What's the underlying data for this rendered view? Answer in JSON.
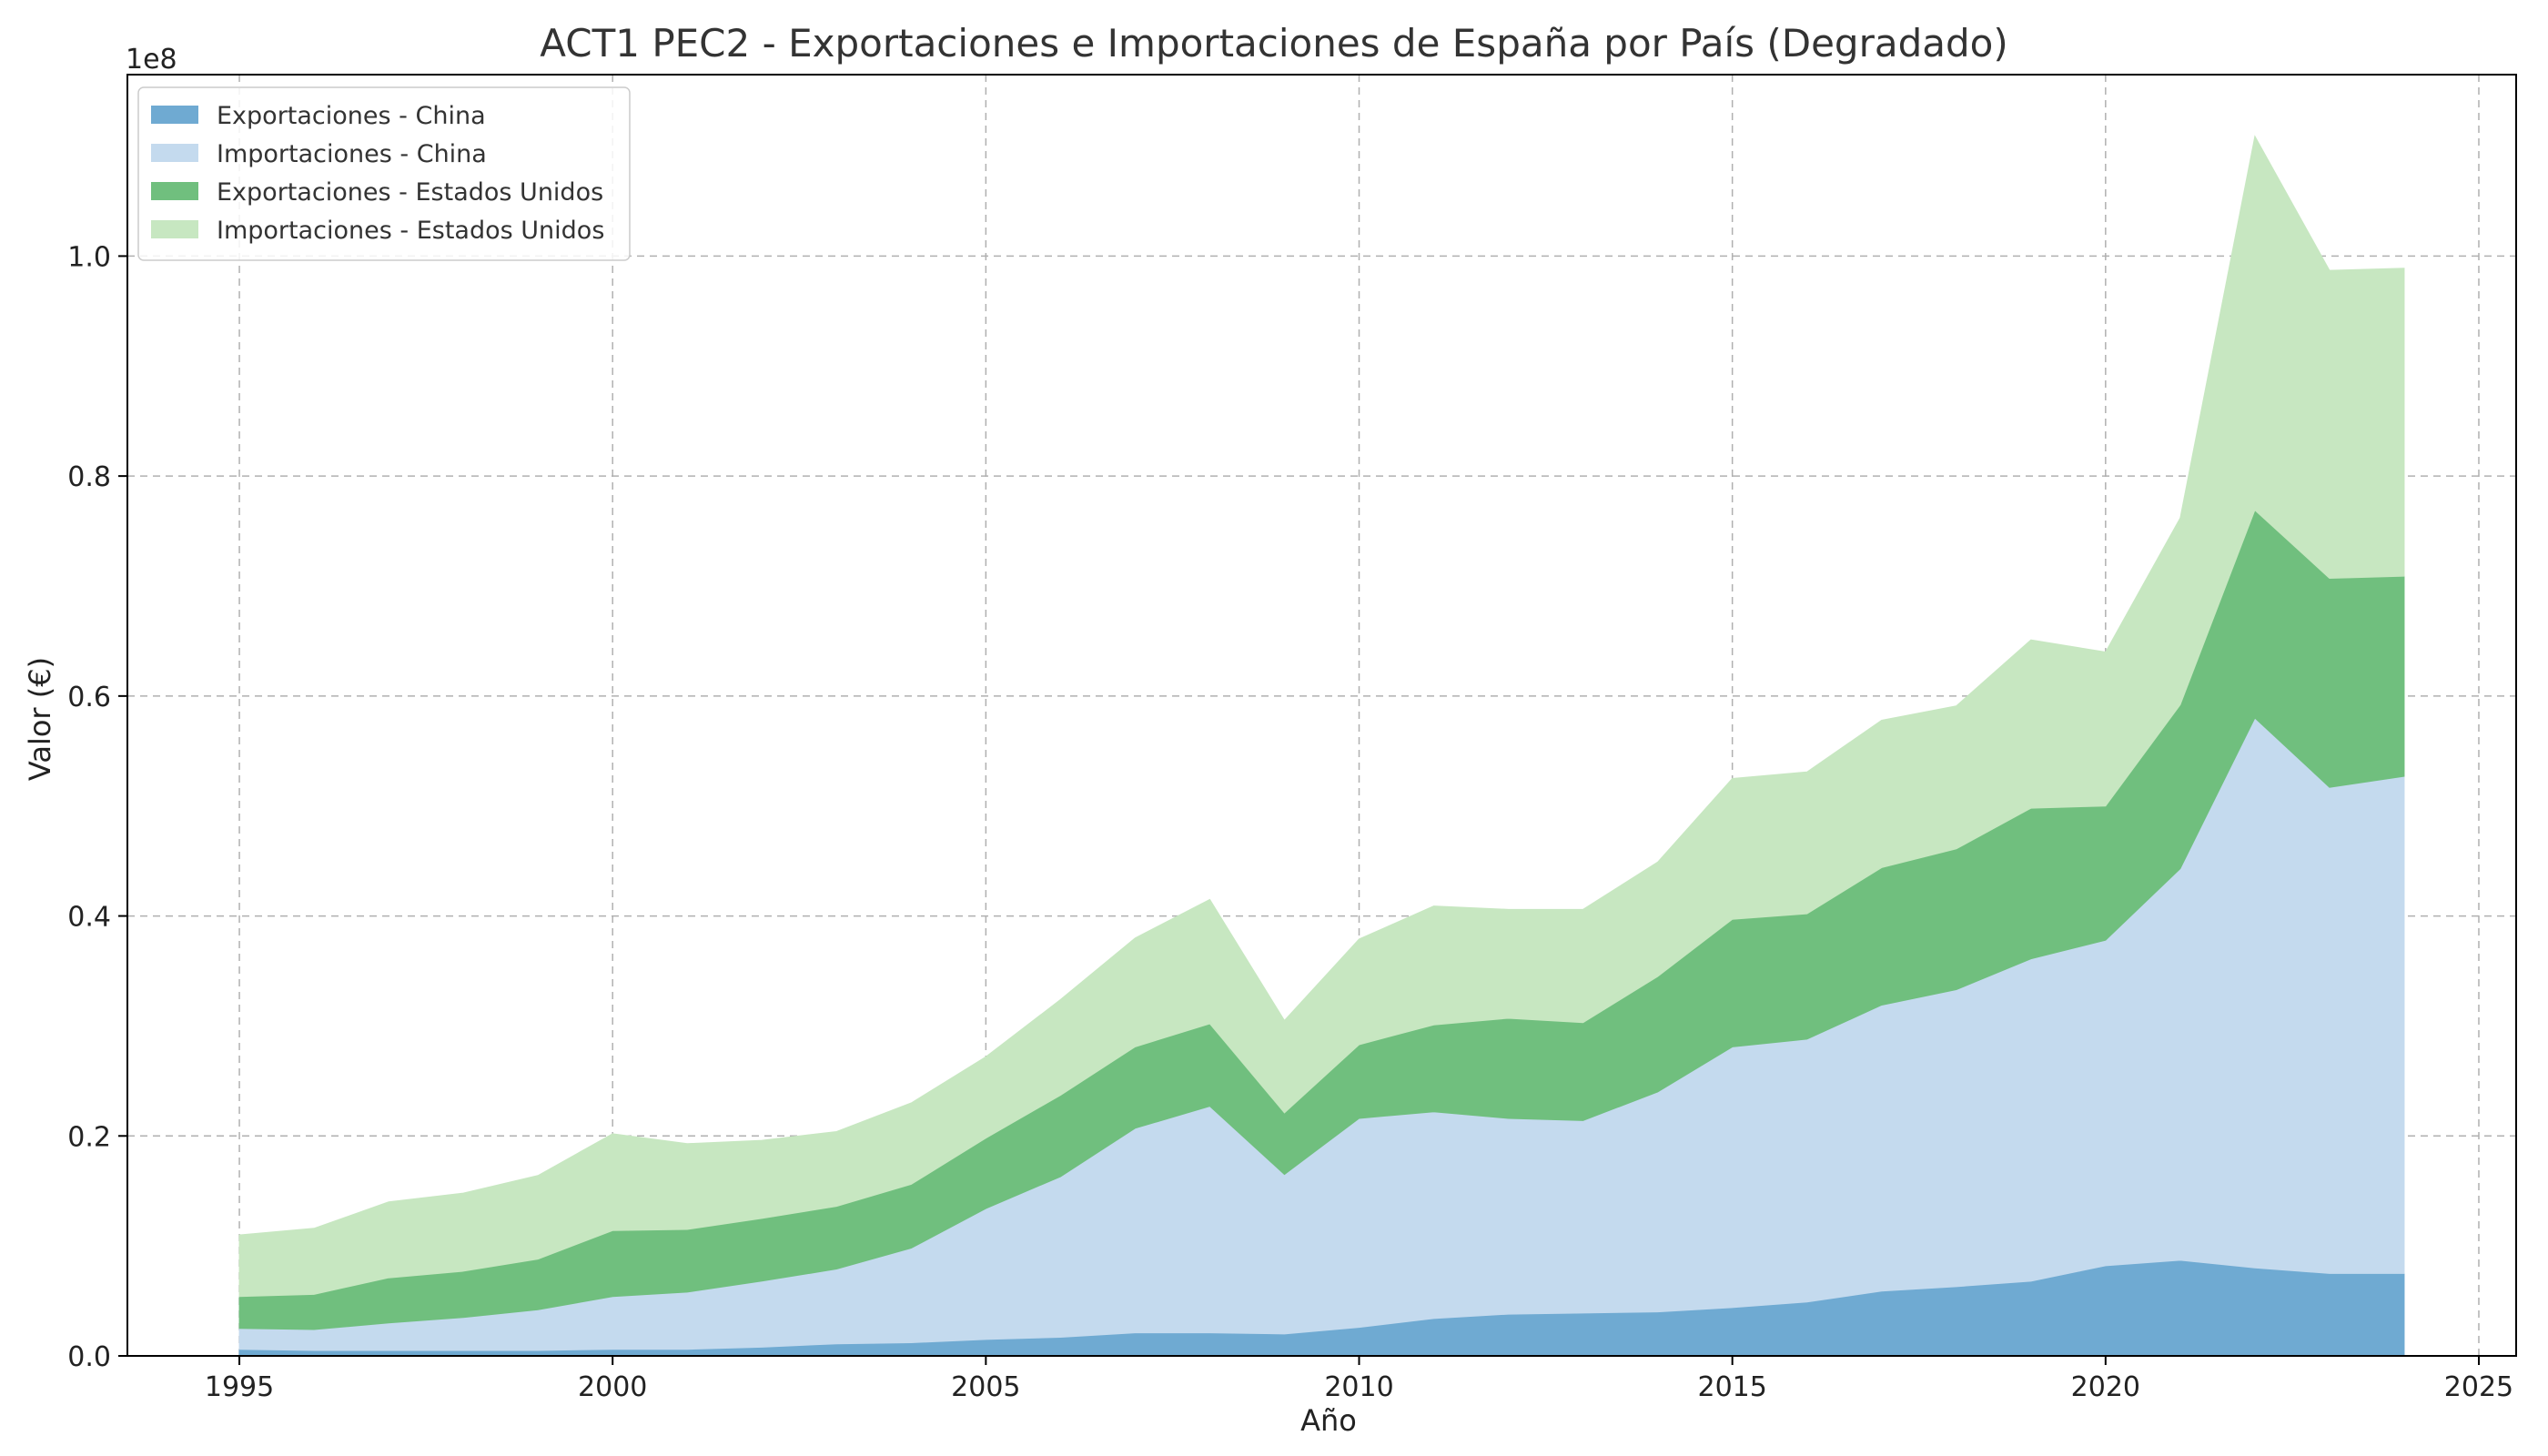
{
  "chart_data": {
    "type": "area",
    "stacked": true,
    "title": "ACT1 PEC2 - Exportaciones e Importaciones de España por País (Degradado)",
    "xlabel": "Año",
    "ylabel": "Valor (€)",
    "y_offset_label": "1e8",
    "y_scale": 100000000,
    "xlim": [
      1993.5,
      2025.5
    ],
    "ylim": [
      0,
      1.165
    ],
    "x_ticks": [
      1995,
      2000,
      2005,
      2010,
      2015,
      2020,
      2025
    ],
    "y_ticks": [
      0.0,
      0.2,
      0.4,
      0.6,
      0.8,
      1.0
    ],
    "y_tick_labels": [
      "0.0",
      "0.2",
      "0.4",
      "0.6",
      "0.8",
      "1.0"
    ],
    "grid": true,
    "legend_position": "top-left",
    "x": [
      1995,
      1996,
      1997,
      1998,
      1999,
      2000,
      2001,
      2002,
      2003,
      2004,
      2005,
      2006,
      2007,
      2008,
      2009,
      2010,
      2011,
      2012,
      2013,
      2014,
      2015,
      2016,
      2017,
      2018,
      2019,
      2020,
      2021,
      2022,
      2023,
      2024
    ],
    "series": [
      {
        "name": "Exportaciones - China",
        "color": "#6faad2",
        "values": [
          0.006,
          0.005,
          0.005,
          0.005,
          0.005,
          0.006,
          0.006,
          0.008,
          0.011,
          0.012,
          0.015,
          0.017,
          0.021,
          0.021,
          0.02,
          0.026,
          0.034,
          0.038,
          0.039,
          0.04,
          0.044,
          0.049,
          0.059,
          0.063,
          0.068,
          0.082,
          0.087,
          0.08,
          0.075,
          0.075
        ]
      },
      {
        "name": "Importaciones - China",
        "color": "#c4daee",
        "values": [
          0.019,
          0.019,
          0.025,
          0.03,
          0.037,
          0.048,
          0.052,
          0.06,
          0.068,
          0.086,
          0.119,
          0.146,
          0.186,
          0.206,
          0.145,
          0.19,
          0.188,
          0.178,
          0.175,
          0.2,
          0.237,
          0.239,
          0.26,
          0.27,
          0.293,
          0.296,
          0.356,
          0.5,
          0.442,
          0.452
        ]
      },
      {
        "name": "Exportaciones - Estados Unidos",
        "color": "#70bf7e",
        "values": [
          0.029,
          0.032,
          0.041,
          0.042,
          0.046,
          0.06,
          0.057,
          0.057,
          0.057,
          0.058,
          0.064,
          0.074,
          0.074,
          0.075,
          0.056,
          0.067,
          0.079,
          0.091,
          0.089,
          0.105,
          0.116,
          0.114,
          0.125,
          0.128,
          0.137,
          0.122,
          0.149,
          0.189,
          0.19,
          0.182
        ]
      },
      {
        "name": "Importaciones - Estados Unidos",
        "color": "#c7e7c1",
        "values": [
          0.056,
          0.06,
          0.069,
          0.071,
          0.076,
          0.088,
          0.078,
          0.071,
          0.068,
          0.074,
          0.074,
          0.087,
          0.099,
          0.113,
          0.084,
          0.096,
          0.108,
          0.099,
          0.103,
          0.104,
          0.128,
          0.129,
          0.134,
          0.13,
          0.153,
          0.14,
          0.17,
          0.34,
          0.28,
          0.28
        ]
      }
    ]
  }
}
